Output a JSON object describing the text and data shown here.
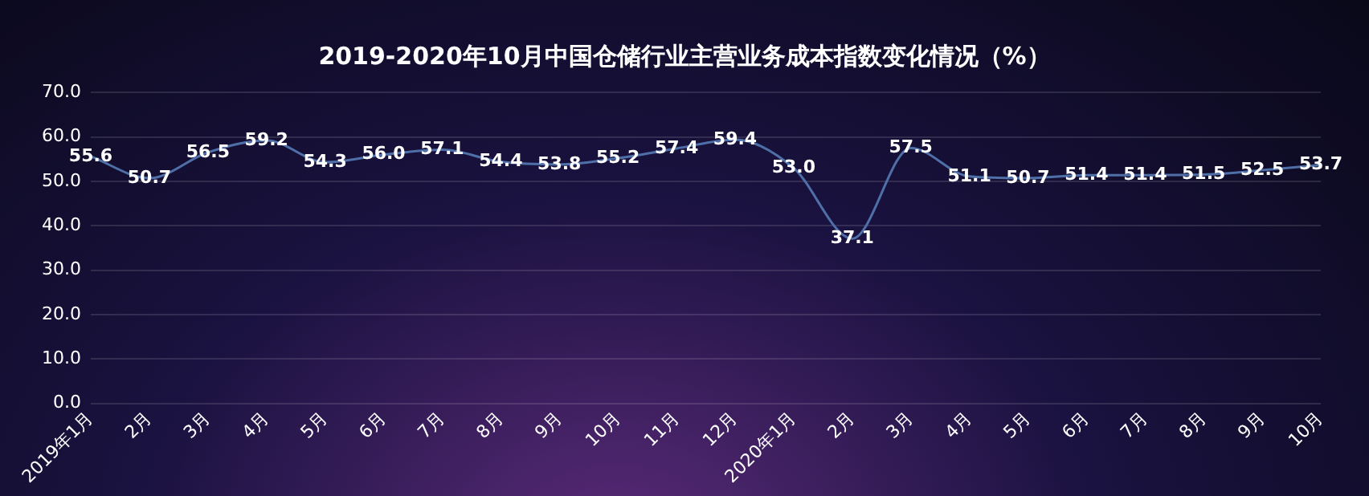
{
  "chart_data": {
    "type": "line",
    "title": "2019-2020年10月中国仓储行业主营业务成本指数变化情况（%）",
    "categories": [
      "2019年1月",
      "2月",
      "3月",
      "4月",
      "5月",
      "6月",
      "7月",
      "8月",
      "9月",
      "10月",
      "11月",
      "12月",
      "2020年1月",
      "2月",
      "3月",
      "4月",
      "5月",
      "6月",
      "7月",
      "8月",
      "9月",
      "10月"
    ],
    "series": [
      {
        "color": "#4f6fa8",
        "values": [
          55.6,
          50.7,
          56.5,
          59.2,
          54.3,
          56.0,
          57.1,
          54.4,
          53.8,
          55.2,
          57.4,
          59.4,
          53.0,
          37.1,
          57.5,
          51.1,
          50.7,
          51.4,
          51.4,
          51.5,
          52.5,
          53.7
        ],
        "value_labels": [
          "55.6",
          "50.7",
          "56.5",
          "59.2",
          "54.3",
          "56.0",
          "57.1",
          "54.4",
          "53.8",
          "55.2",
          "57.4",
          "59.4",
          "53.0",
          "37.1",
          "57.5",
          "51.1",
          "50.7",
          "51.4",
          "51.4",
          "51.5",
          "52.5",
          "53.7"
        ]
      }
    ],
    "ylim": [
      0,
      70
    ],
    "yticks": [
      {
        "value": 0,
        "label": "0.0"
      },
      {
        "value": 10,
        "label": "10.0"
      },
      {
        "value": 20,
        "label": "20.0"
      },
      {
        "value": 30,
        "label": "30.0"
      },
      {
        "value": 40,
        "label": "40.0"
      },
      {
        "value": 50,
        "label": "50.0"
      },
      {
        "value": 60,
        "label": "60.0"
      },
      {
        "value": 70,
        "label": "70.0"
      }
    ],
    "grid": "y",
    "legend": false,
    "marker": "none"
  }
}
